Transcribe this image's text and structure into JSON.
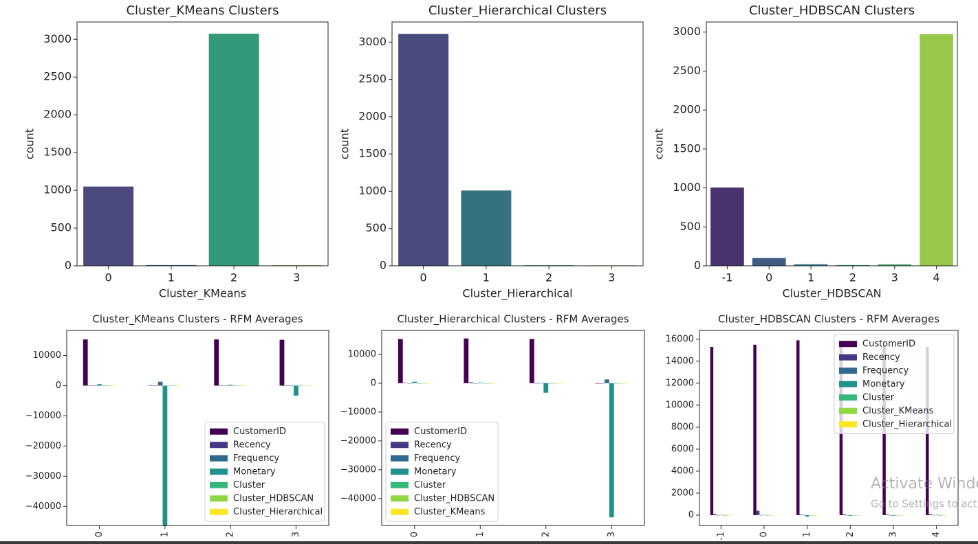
{
  "chart_data": [
    {
      "type": "bar",
      "title": "Cluster_KMeans Clusters",
      "x_label": "Cluster_KMeans",
      "y_label": "count",
      "categories": [
        "0",
        "1",
        "2",
        "3"
      ],
      "values": [
        1050,
        10,
        3075,
        8
      ],
      "colors": [
        "#4a4a7c",
        "#37688a",
        "#33997a",
        "#6aa74f"
      ],
      "ylim": [
        0,
        3230
      ],
      "yticks": [
        0,
        500,
        1000,
        1500,
        2000,
        2500,
        3000
      ]
    },
    {
      "type": "bar",
      "title": "Cluster_Hierarchical Clusters",
      "x_label": "Cluster_Hierarchical",
      "y_label": "count",
      "categories": [
        "0",
        "1",
        "2",
        "3"
      ],
      "values": [
        3110,
        1010,
        8,
        6
      ],
      "colors": [
        "#4a4a7c",
        "#35727f",
        "#2e9b7a",
        "#6aa74f"
      ],
      "ylim": [
        0,
        3270
      ],
      "yticks": [
        0,
        500,
        1000,
        1500,
        2000,
        2500,
        3000
      ]
    },
    {
      "type": "bar",
      "title": "Cluster_HDBSCAN Clusters",
      "x_label": "Cluster_HDBSCAN",
      "y_label": "count",
      "categories": [
        "-1",
        "0",
        "1",
        "2",
        "3",
        "4"
      ],
      "values": [
        1005,
        100,
        20,
        10,
        20,
        2975
      ],
      "colors": [
        "#48336f",
        "#3f5b84",
        "#33788a",
        "#2e9b83",
        "#4fab6c",
        "#98c84a"
      ],
      "ylim": [
        0,
        3130
      ],
      "yticks": [
        0,
        500,
        1000,
        1500,
        2000,
        2500,
        3000
      ]
    },
    {
      "type": "groupedbar",
      "title": "Cluster_KMeans Clusters - RFM Averages",
      "x_label": "Cluster_KMeans",
      "categories": [
        "0",
        "1",
        "2",
        "3"
      ],
      "legend": "lower right",
      "ylim": [
        -46300,
        18300
      ],
      "yticks": [
        {
          "value": -40000,
          "label": "−40000"
        },
        {
          "value": -30000,
          "label": "−30000"
        },
        {
          "value": -20000,
          "label": "−20000"
        },
        {
          "value": -10000,
          "label": "−10000"
        },
        0,
        10000
      ],
      "series": [
        {
          "name": "CustomerID",
          "color": "#440154",
          "values": [
            15300,
            0,
            15300,
            15200
          ]
        },
        {
          "name": "Recency",
          "color": "#443983",
          "values": [
            100,
            2,
            95,
            20
          ]
        },
        {
          "name": "Frequency",
          "color": "#31688e",
          "values": [
            4,
            1300,
            3,
            50
          ]
        },
        {
          "name": "Monetary",
          "color": "#21918c",
          "values": [
            500,
            -46500,
            300,
            -3300
          ]
        },
        {
          "name": "Cluster",
          "color": "#35b779",
          "values": [
            1,
            0,
            1,
            2
          ]
        },
        {
          "name": "Cluster_HDBSCAN",
          "color": "#90d743",
          "values": [
            3.5,
            0,
            3.9,
            2
          ]
        },
        {
          "name": "Cluster_Hierarchical",
          "color": "#fde725",
          "values": [
            0.3,
            3,
            0,
            1
          ]
        }
      ]
    },
    {
      "type": "groupedbar",
      "title": "Cluster_Hierarchical Clusters - RFM Averages",
      "x_label": "Cluster_Hierarchical",
      "categories": [
        "0",
        "1",
        "2",
        "3"
      ],
      "legend": "lower left",
      "ylim": [
        -49300,
        18300
      ],
      "yticks": [
        {
          "value": -40000,
          "label": "−40000"
        },
        {
          "value": -30000,
          "label": "−30000"
        },
        {
          "value": -20000,
          "label": "−20000"
        },
        {
          "value": -10000,
          "label": "−10000"
        },
        0,
        10000
      ],
      "series": [
        {
          "name": "CustomerID",
          "color": "#440154",
          "values": [
            15300,
            15500,
            15300,
            0
          ]
        },
        {
          "name": "Recency",
          "color": "#443983",
          "values": [
            95,
            300,
            20,
            2
          ]
        },
        {
          "name": "Frequency",
          "color": "#31688e",
          "values": [
            4,
            2,
            50,
            1300
          ]
        },
        {
          "name": "Monetary",
          "color": "#21918c",
          "values": [
            500,
            200,
            -3300,
            -46500
          ]
        },
        {
          "name": "Cluster",
          "color": "#35b779",
          "values": [
            1,
            1,
            2,
            0
          ]
        },
        {
          "name": "Cluster_HDBSCAN",
          "color": "#90d743",
          "values": [
            3.9,
            3.5,
            2,
            0
          ]
        },
        {
          "name": "Cluster_KMeans",
          "color": "#fde725",
          "values": [
            2,
            0,
            3,
            1
          ]
        }
      ]
    },
    {
      "type": "groupedbar",
      "title": "Cluster_HDBSCAN Clusters - RFM Averages",
      "x_label": "Cluster_HDBSCAN",
      "categories": [
        "-1",
        "0",
        "1",
        "2",
        "3",
        "4"
      ],
      "legend": "upper right",
      "ylim": [
        -940,
        16800
      ],
      "yticks": [
        0,
        2000,
        4000,
        6000,
        8000,
        10000,
        12000,
        14000,
        16000
      ],
      "series": [
        {
          "name": "CustomerID",
          "color": "#440154",
          "values": [
            15300,
            15500,
            15900,
            15600,
            15400,
            15300
          ]
        },
        {
          "name": "Recency",
          "color": "#443983",
          "values": [
            100,
            400,
            50,
            80,
            60,
            90
          ]
        },
        {
          "name": "Frequency",
          "color": "#31688e",
          "values": [
            4,
            2,
            10,
            5,
            3,
            4
          ]
        },
        {
          "name": "Monetary",
          "color": "#21918c",
          "values": [
            30,
            20,
            -150,
            -60,
            -50,
            40
          ]
        },
        {
          "name": "Cluster",
          "color": "#35b779",
          "values": [
            1,
            1,
            0,
            2,
            1,
            1
          ]
        },
        {
          "name": "Cluster_KMeans",
          "color": "#90d743",
          "values": [
            0.3,
            0,
            2,
            3,
            1,
            2
          ]
        },
        {
          "name": "Cluster_Hierarchical",
          "color": "#fde725",
          "values": [
            1,
            0,
            1,
            1,
            0,
            0
          ]
        }
      ]
    }
  ],
  "watermark": {
    "title": "Activate Windows",
    "subtitle": "Go to Settings to activate Windows."
  }
}
